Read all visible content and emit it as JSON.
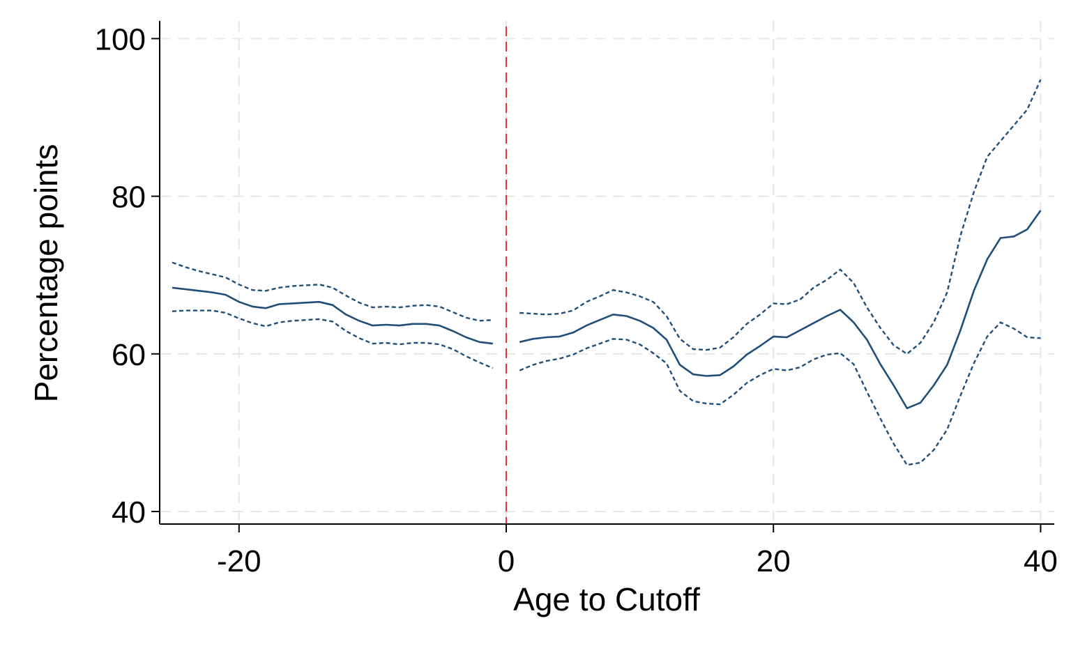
{
  "chart_data": {
    "type": "line",
    "title": "",
    "xlabel": "Age to Cutoff",
    "ylabel": "Percentage points",
    "xlim": [
      -25,
      41
    ],
    "ylim": [
      38,
      102
    ],
    "xticks": [
      -20,
      0,
      20,
      40
    ],
    "yticks": [
      40,
      60,
      80,
      100
    ],
    "grid": true,
    "cutoff_x": 0,
    "colors": {
      "series": "#1f4e79",
      "cutoff": "#e8302e",
      "grid": "#e6e6e6",
      "axis": "#000000"
    },
    "series": [
      {
        "role": "estimate",
        "style": "solid",
        "segments": [
          [
            [
              -25,
              68.4
            ],
            [
              -24,
              68.2
            ],
            [
              -23,
              68.0
            ],
            [
              -22,
              67.8
            ],
            [
              -21,
              67.5
            ],
            [
              -20,
              66.6
            ],
            [
              -19,
              66.0
            ],
            [
              -18,
              65.8
            ],
            [
              -17,
              66.3
            ],
            [
              -16,
              66.4
            ],
            [
              -15,
              66.5
            ],
            [
              -14,
              66.6
            ],
            [
              -13,
              66.2
            ],
            [
              -12,
              65.0
            ],
            [
              -11,
              64.2
            ],
            [
              -10,
              63.6
            ],
            [
              -9,
              63.7
            ],
            [
              -8,
              63.6
            ],
            [
              -7,
              63.8
            ],
            [
              -6,
              63.8
            ],
            [
              -5,
              63.6
            ],
            [
              -4,
              62.9
            ],
            [
              -3,
              62.1
            ],
            [
              -2,
              61.5
            ],
            [
              -1,
              61.3
            ]
          ],
          [
            [
              1,
              61.5
            ],
            [
              2,
              61.9
            ],
            [
              3,
              62.1
            ],
            [
              4,
              62.2
            ],
            [
              5,
              62.7
            ],
            [
              6,
              63.6
            ],
            [
              7,
              64.3
            ],
            [
              8,
              65.0
            ],
            [
              9,
              64.8
            ],
            [
              10,
              64.2
            ],
            [
              11,
              63.3
            ],
            [
              12,
              61.8
            ],
            [
              13,
              58.6
            ],
            [
              14,
              57.4
            ],
            [
              15,
              57.2
            ],
            [
              16,
              57.3
            ],
            [
              17,
              58.4
            ],
            [
              18,
              59.9
            ],
            [
              19,
              61.0
            ],
            [
              20,
              62.2
            ],
            [
              21,
              62.1
            ],
            [
              22,
              63.0
            ],
            [
              23,
              63.9
            ],
            [
              24,
              64.8
            ],
            [
              25,
              65.6
            ],
            [
              26,
              64.0
            ],
            [
              27,
              61.8
            ],
            [
              28,
              58.7
            ],
            [
              29,
              56.0
            ],
            [
              30,
              53.1
            ],
            [
              31,
              53.8
            ],
            [
              32,
              56.0
            ],
            [
              33,
              58.6
            ],
            [
              34,
              63.0
            ],
            [
              35,
              68.0
            ],
            [
              36,
              72.0
            ],
            [
              37,
              74.7
            ],
            [
              38,
              74.9
            ],
            [
              39,
              75.8
            ],
            [
              40,
              78.2
            ]
          ]
        ]
      },
      {
        "role": "upper",
        "style": "dotted",
        "segments": [
          [
            [
              -25,
              71.6
            ],
            [
              -24,
              71.0
            ],
            [
              -23,
              70.5
            ],
            [
              -22,
              70.1
            ],
            [
              -21,
              69.7
            ],
            [
              -20,
              68.8
            ],
            [
              -19,
              68.1
            ],
            [
              -18,
              68.0
            ],
            [
              -17,
              68.4
            ],
            [
              -16,
              68.6
            ],
            [
              -15,
              68.7
            ],
            [
              -14,
              68.8
            ],
            [
              -13,
              68.4
            ],
            [
              -12,
              67.4
            ],
            [
              -11,
              66.5
            ],
            [
              -10,
              65.9
            ],
            [
              -9,
              66.0
            ],
            [
              -8,
              65.9
            ],
            [
              -7,
              66.1
            ],
            [
              -6,
              66.2
            ],
            [
              -5,
              66.0
            ],
            [
              -4,
              65.3
            ],
            [
              -3,
              64.6
            ],
            [
              -2,
              64.2
            ],
            [
              -1,
              64.3
            ]
          ],
          [
            [
              1,
              65.2
            ],
            [
              2,
              65.1
            ],
            [
              3,
              65.0
            ],
            [
              4,
              65.1
            ],
            [
              5,
              65.5
            ],
            [
              6,
              66.6
            ],
            [
              7,
              67.3
            ],
            [
              8,
              68.1
            ],
            [
              9,
              67.8
            ],
            [
              10,
              67.3
            ],
            [
              11,
              66.6
            ],
            [
              12,
              64.8
            ],
            [
              13,
              61.9
            ],
            [
              14,
              60.6
            ],
            [
              15,
              60.5
            ],
            [
              16,
              60.8
            ],
            [
              17,
              62.1
            ],
            [
              18,
              63.8
            ],
            [
              19,
              65.0
            ],
            [
              20,
              66.4
            ],
            [
              21,
              66.3
            ],
            [
              22,
              66.9
            ],
            [
              23,
              68.4
            ],
            [
              24,
              69.4
            ],
            [
              25,
              70.7
            ],
            [
              26,
              69.0
            ],
            [
              27,
              65.9
            ],
            [
              28,
              63.3
            ],
            [
              29,
              61.1
            ],
            [
              30,
              60.0
            ],
            [
              31,
              61.4
            ],
            [
              32,
              64.0
            ],
            [
              33,
              67.8
            ],
            [
              34,
              75.0
            ],
            [
              35,
              80.5
            ],
            [
              36,
              85.0
            ],
            [
              37,
              87.0
            ],
            [
              38,
              89.0
            ],
            [
              39,
              91.0
            ],
            [
              40,
              94.8
            ]
          ]
        ]
      },
      {
        "role": "lower",
        "style": "dotted",
        "segments": [
          [
            [
              -25,
              65.4
            ],
            [
              -24,
              65.5
            ],
            [
              -23,
              65.5
            ],
            [
              -22,
              65.5
            ],
            [
              -21,
              65.2
            ],
            [
              -20,
              64.5
            ],
            [
              -19,
              63.9
            ],
            [
              -18,
              63.5
            ],
            [
              -17,
              64.0
            ],
            [
              -16,
              64.2
            ],
            [
              -15,
              64.3
            ],
            [
              -14,
              64.4
            ],
            [
              -13,
              64.1
            ],
            [
              -12,
              62.9
            ],
            [
              -11,
              62.0
            ],
            [
              -10,
              61.3
            ],
            [
              -9,
              61.4
            ],
            [
              -8,
              61.2
            ],
            [
              -7,
              61.4
            ],
            [
              -6,
              61.4
            ],
            [
              -5,
              61.2
            ],
            [
              -4,
              60.6
            ],
            [
              -3,
              59.7
            ],
            [
              -2,
              58.9
            ],
            [
              -1,
              58.2
            ]
          ],
          [
            [
              1,
              57.9
            ],
            [
              2,
              58.6
            ],
            [
              3,
              59.1
            ],
            [
              4,
              59.4
            ],
            [
              5,
              59.9
            ],
            [
              6,
              60.7
            ],
            [
              7,
              61.3
            ],
            [
              8,
              61.9
            ],
            [
              9,
              61.8
            ],
            [
              10,
              61.2
            ],
            [
              11,
              60.1
            ],
            [
              12,
              58.8
            ],
            [
              13,
              55.3
            ],
            [
              14,
              54.0
            ],
            [
              15,
              53.7
            ],
            [
              16,
              53.6
            ],
            [
              17,
              54.8
            ],
            [
              18,
              56.3
            ],
            [
              19,
              57.3
            ],
            [
              20,
              58.1
            ],
            [
              21,
              57.9
            ],
            [
              22,
              58.3
            ],
            [
              23,
              59.3
            ],
            [
              24,
              59.9
            ],
            [
              25,
              60.1
            ],
            [
              26,
              58.7
            ],
            [
              27,
              55.2
            ],
            [
              28,
              51.8
            ],
            [
              29,
              48.6
            ],
            [
              30,
              45.9
            ],
            [
              31,
              46.2
            ],
            [
              32,
              47.8
            ],
            [
              33,
              50.4
            ],
            [
              34,
              54.7
            ],
            [
              35,
              58.8
            ],
            [
              36,
              62.2
            ],
            [
              37,
              64.0
            ],
            [
              38,
              63.2
            ],
            [
              39,
              62.1
            ],
            [
              40,
              62.0
            ]
          ]
        ]
      }
    ]
  }
}
